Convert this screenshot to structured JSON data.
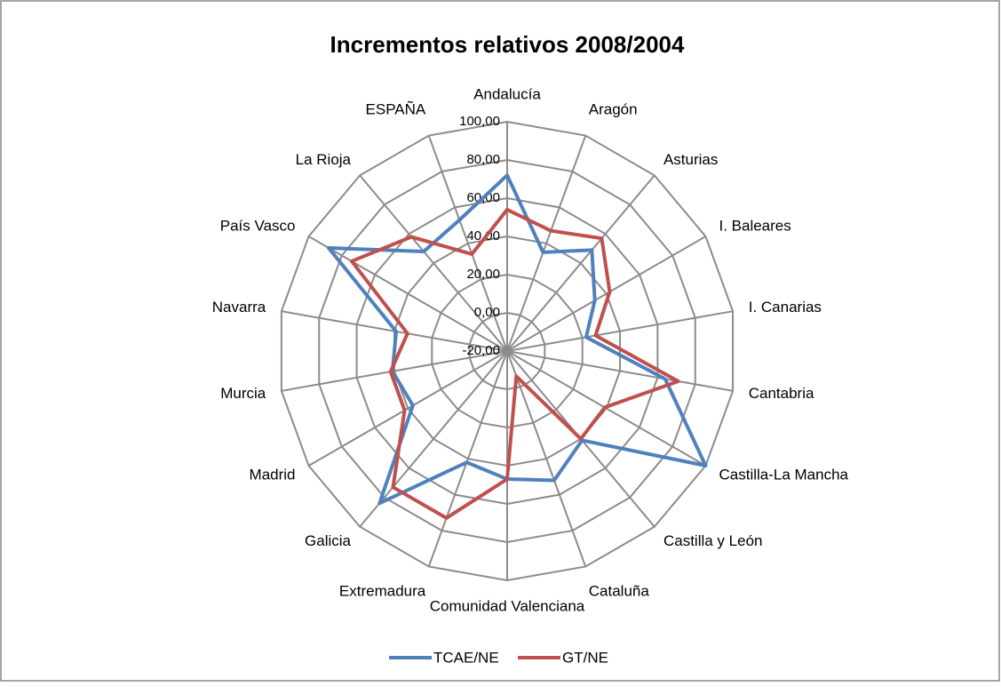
{
  "chart_data": {
    "type": "radar",
    "title": "Incrementos relativos 2008/2004",
    "categories": [
      "Andalucía",
      "Aragón",
      "Asturias",
      "I. Baleares",
      "I. Canarias",
      "Cantabria",
      "Castilla-La Mancha",
      "Castilla y León",
      "Cataluña",
      "Comunidad Valenciana",
      "Extremadura",
      "Galicia",
      "Madrid",
      "Murcia",
      "Navarra",
      "País Vasco",
      "La Rioja",
      "ESPAÑA"
    ],
    "series": [
      {
        "name": "TCAE/NE",
        "color": "#4f81bd",
        "values": [
          72,
          35,
          49,
          33,
          22,
          64,
          100,
          41,
          52,
          47,
          42,
          84,
          37,
          41,
          39,
          88,
          48,
          53
        ]
      },
      {
        "name": "GT/NE",
        "color": "#c0504d",
        "values": [
          54,
          47,
          57,
          42,
          27,
          71,
          39,
          40,
          -6,
          47,
          73,
          73,
          42,
          42,
          33,
          74,
          58,
          34
        ]
      }
    ],
    "ylim": [
      -20,
      100
    ],
    "yticks": [
      {
        "value": -20,
        "label": "-20,00"
      },
      {
        "value": 0,
        "label": "0,00"
      },
      {
        "value": 20,
        "label": "20,00"
      },
      {
        "value": 40,
        "label": "40,00"
      },
      {
        "value": 60,
        "label": "60,00"
      },
      {
        "value": 80,
        "label": "80,00"
      },
      {
        "value": 100,
        "label": "100,00"
      }
    ],
    "grid": true,
    "legend": "bottom"
  }
}
